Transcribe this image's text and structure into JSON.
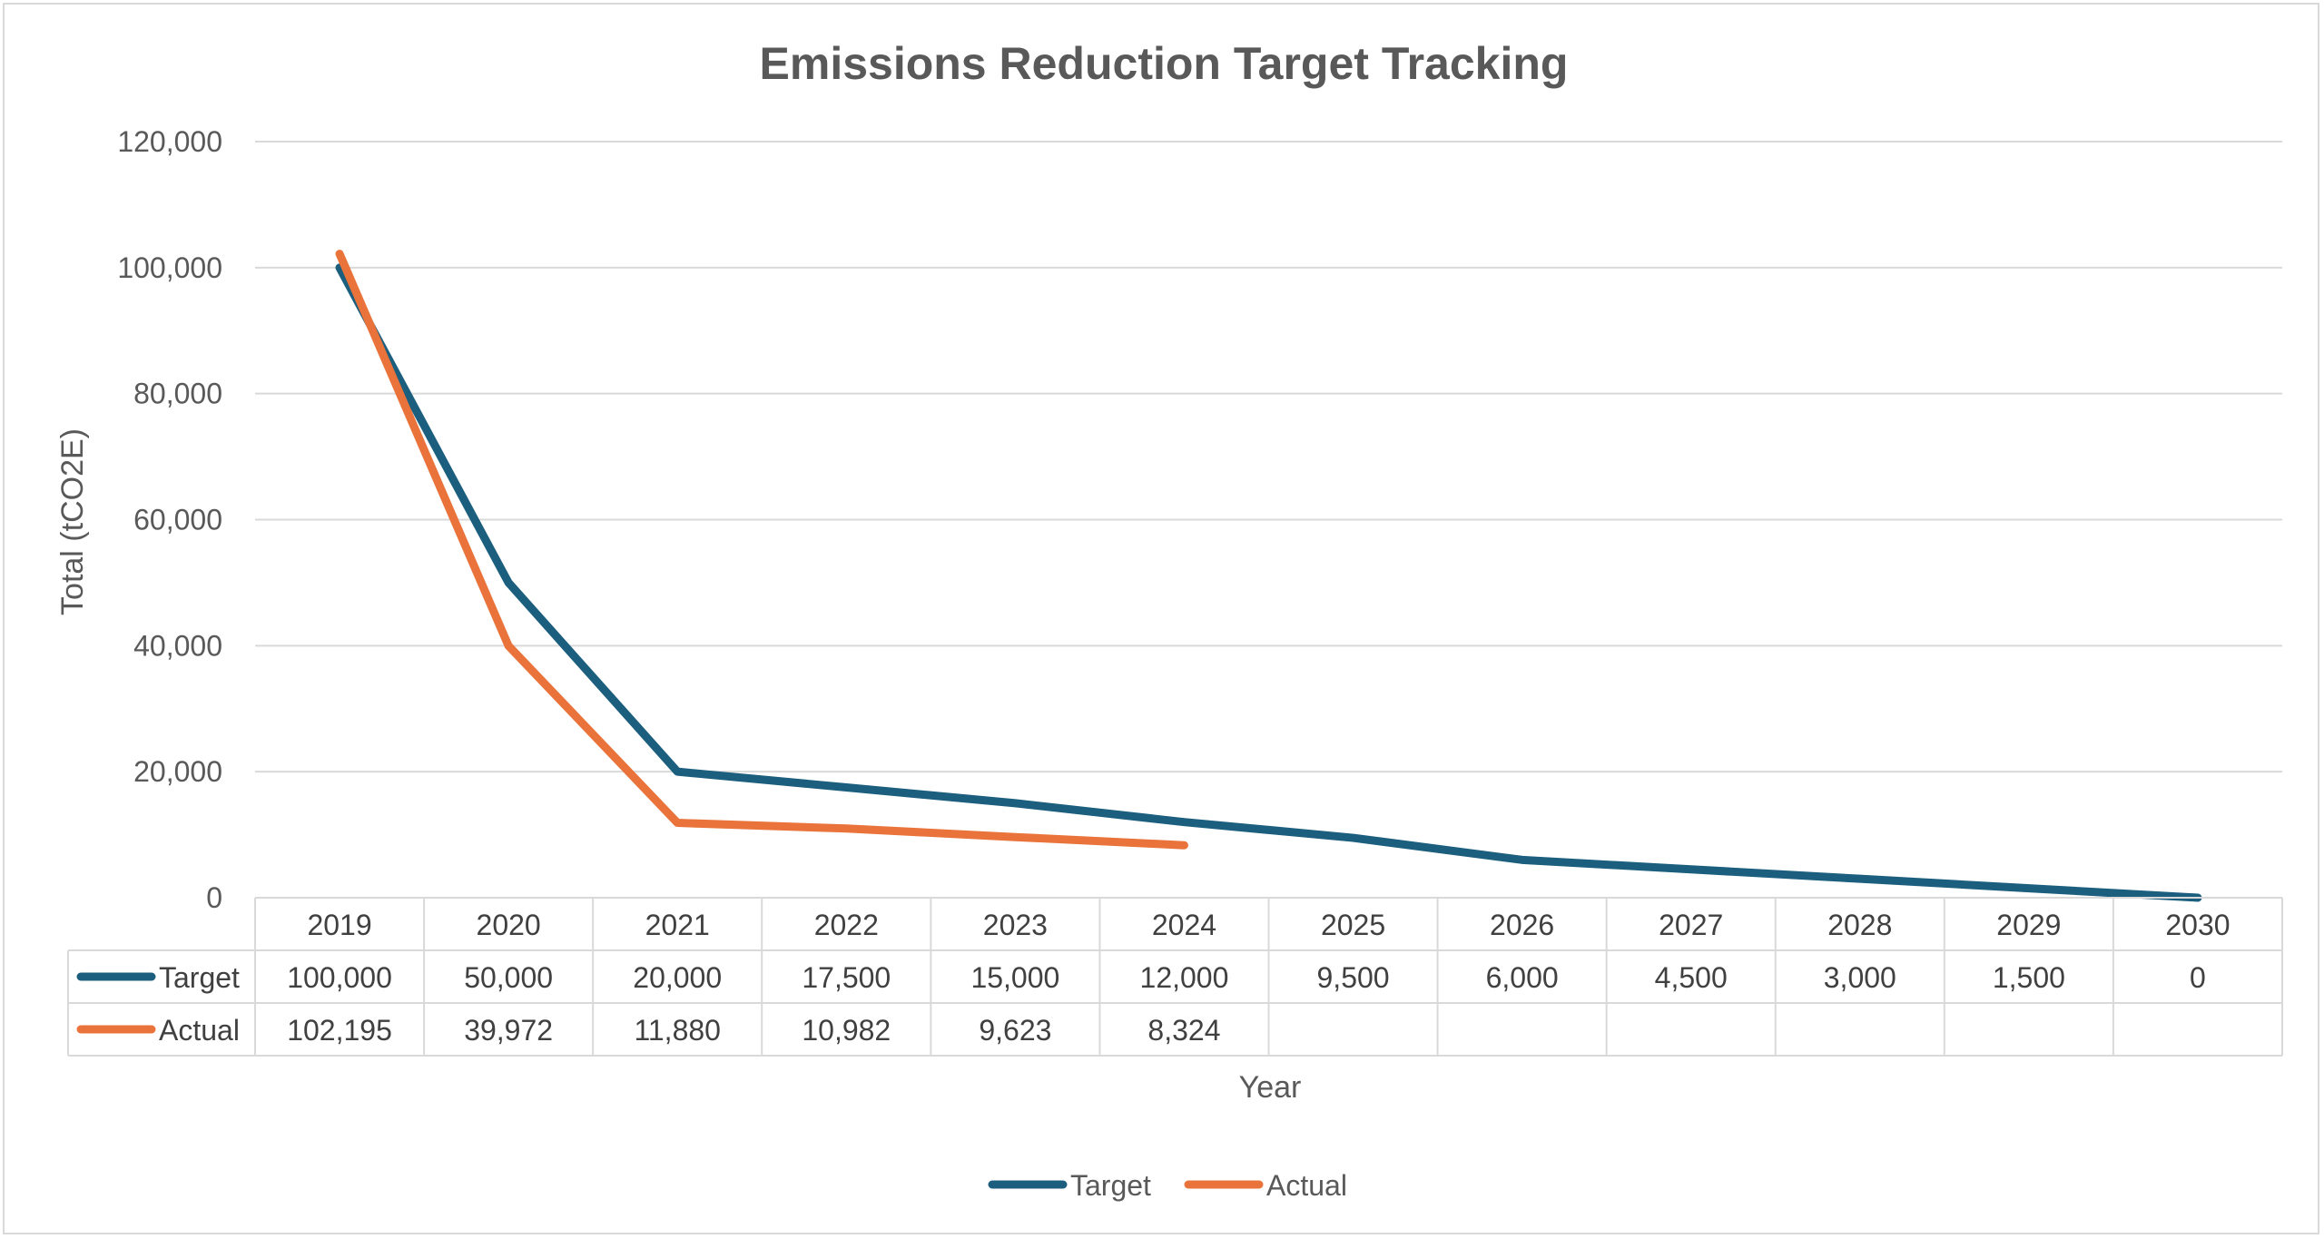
{
  "chart_data": {
    "type": "line",
    "title": "Emissions Reduction Target Tracking",
    "xlabel": "Year",
    "ylabel": "Total (tCO2E)",
    "ylim": [
      0,
      120000
    ],
    "yticks": [
      0,
      20000,
      40000,
      60000,
      80000,
      100000,
      120000
    ],
    "ytick_labels": [
      "0",
      "20,000",
      "40,000",
      "60,000",
      "80,000",
      "100,000",
      "120,000"
    ],
    "categories": [
      "2019",
      "2020",
      "2021",
      "2022",
      "2023",
      "2024",
      "2025",
      "2026",
      "2027",
      "2028",
      "2029",
      "2030"
    ],
    "series": [
      {
        "name": "Target",
        "color": "#1b5e7e",
        "values": [
          100000,
          50000,
          20000,
          17500,
          15000,
          12000,
          9500,
          6000,
          4500,
          3000,
          1500,
          0
        ],
        "labels": [
          "100,000",
          "50,000",
          "20,000",
          "17,500",
          "15,000",
          "12,000",
          "9,500",
          "6,000",
          "4,500",
          "3,000",
          "1,500",
          "0"
        ]
      },
      {
        "name": "Actual",
        "color": "#e9733a",
        "values": [
          102195,
          39972,
          11880,
          10982,
          9623,
          8324,
          null,
          null,
          null,
          null,
          null,
          null
        ],
        "labels": [
          "102,195",
          "39,972",
          "11,880",
          "10,982",
          "9,623",
          "8,324",
          "",
          "",
          "",
          "",
          "",
          ""
        ]
      }
    ],
    "grid": true,
    "legend": "bottom-center",
    "data_table": true
  }
}
